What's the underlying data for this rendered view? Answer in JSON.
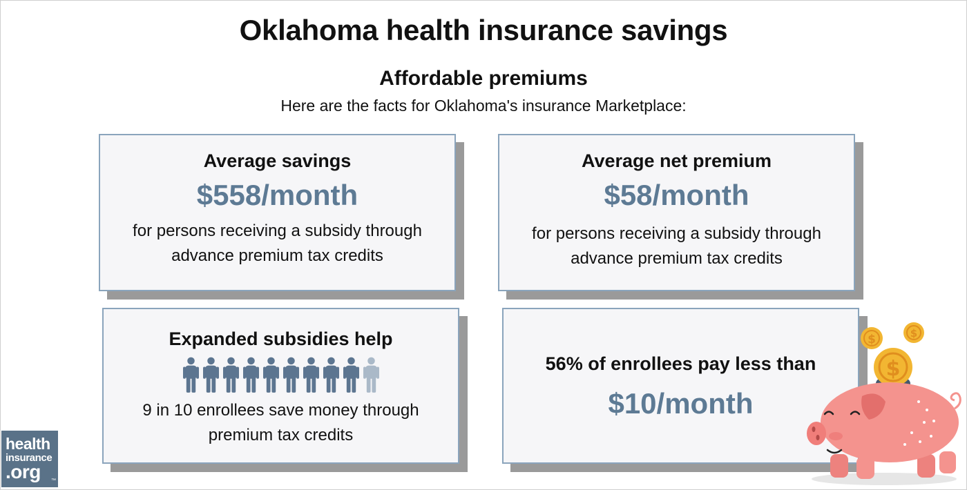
{
  "header": {
    "title": "Oklahoma health insurance savings",
    "subtitle": "Affordable premiums",
    "intro": "Here are the facts for Oklahoma's insurance Marketplace:"
  },
  "cards": [
    {
      "heading": "Average savings",
      "value": "$558/month",
      "desc_line1": "for persons receiving a subsidy through",
      "desc_line2": "advance premium tax credits"
    },
    {
      "heading": "Average net premium",
      "value": "$58/month",
      "desc_line1": "for persons receiving a subsidy through",
      "desc_line2": "advance premium tax credits"
    },
    {
      "heading": "Expanded subsidies help",
      "desc_line1": "9 in 10 enrollees save money through",
      "desc_line2": "premium tax credits",
      "people_total": 10,
      "people_highlighted": 9
    },
    {
      "heading": "56% of enrollees pay less than",
      "value": "$10/month"
    }
  ],
  "logo": {
    "line1": "health",
    "line2": "insurance",
    "line3": ".org",
    "trademark": "™"
  },
  "colors": {
    "value_text": "#5d7a94",
    "card_border": "#8aa4bc",
    "card_shadow": "#9a9a9a",
    "person_filled": "#5c7590",
    "person_faded": "#aab9c8",
    "logo_bg": "#5a7288",
    "pig_body": "#f4938e",
    "coin": "#f2b632"
  },
  "icons": {
    "person": "person-icon",
    "piggy_bank": "piggy-bank-icon",
    "coin": "dollar-coin-icon"
  }
}
